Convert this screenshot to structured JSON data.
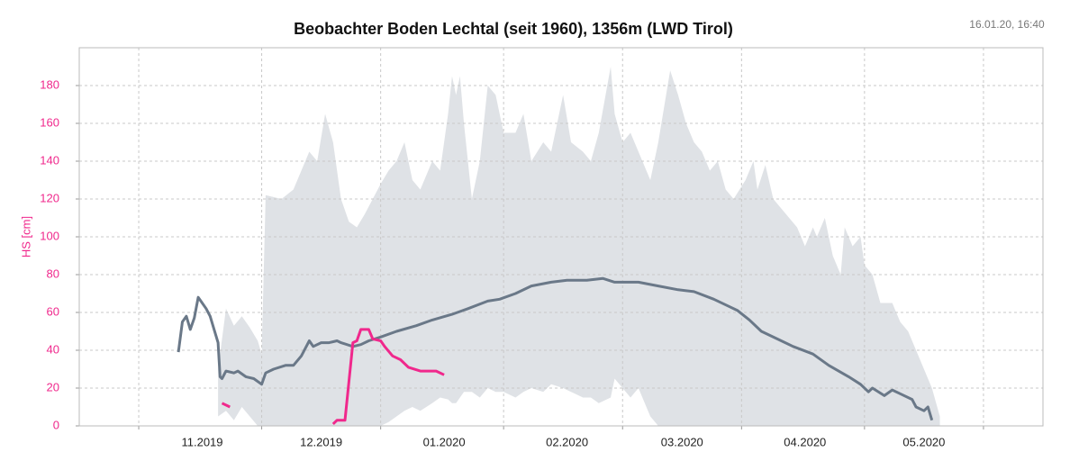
{
  "chart_data": {
    "type": "line",
    "title": "Beobachter Boden Lechtal (seit 1960), 1356m (LWD Tirol)",
    "timestamp": "16.01.20, 16:40",
    "ylabel": "HS [cm]",
    "ylim": [
      0,
      200
    ],
    "yticks": [
      0,
      20,
      40,
      60,
      80,
      100,
      120,
      140,
      160,
      180
    ],
    "xlim": [
      -31,
      212
    ],
    "xticks": [
      {
        "value": 0,
        "label": "11.2019"
      },
      {
        "value": 30,
        "label": "12.2019"
      },
      {
        "value": 61,
        "label": "01.2020"
      },
      {
        "value": 92,
        "label": "02.2020"
      },
      {
        "value": 121,
        "label": "03.2020"
      },
      {
        "value": 152,
        "label": "04.2020"
      },
      {
        "value": 182,
        "label": "05.2020"
      }
    ],
    "xgrid": [
      -16,
      15,
      45,
      76,
      106,
      136,
      167,
      197
    ],
    "grid": true,
    "band": {
      "color": "#dfe2e6",
      "x": [
        4,
        6,
        8,
        10,
        12,
        14,
        15,
        16,
        20,
        23,
        25,
        27,
        29,
        31,
        33,
        35,
        37,
        39,
        41,
        43,
        45,
        47,
        49,
        51,
        53,
        55,
        58,
        60,
        62,
        63,
        64,
        65,
        66,
        68,
        70,
        72,
        74,
        76,
        79,
        81,
        83,
        86,
        88,
        91,
        93,
        96,
        98,
        100,
        103,
        104,
        106,
        108,
        110,
        113,
        115,
        118,
        120,
        122,
        124,
        126,
        128,
        130,
        132,
        134,
        137,
        139,
        140,
        142,
        144,
        146,
        148,
        150,
        152,
        154,
        155,
        157,
        159,
        161,
        162,
        164,
        166,
        167,
        169,
        171,
        174,
        176,
        178,
        180,
        182,
        184,
        186
      ],
      "upper": [
        30,
        62,
        53,
        58,
        52,
        45,
        38,
        122,
        120,
        125,
        135,
        145,
        140,
        165,
        150,
        120,
        108,
        105,
        112,
        120,
        128,
        135,
        140,
        150,
        130,
        125,
        140,
        135,
        165,
        185,
        175,
        185,
        160,
        120,
        140,
        180,
        175,
        155,
        155,
        165,
        140,
        150,
        145,
        175,
        150,
        145,
        140,
        155,
        190,
        165,
        150,
        155,
        145,
        130,
        150,
        188,
        175,
        160,
        150,
        145,
        135,
        140,
        125,
        120,
        130,
        140,
        125,
        138,
        120,
        115,
        110,
        105,
        95,
        105,
        100,
        110,
        90,
        80,
        105,
        95,
        100,
        85,
        80,
        65,
        65,
        55,
        50,
        40,
        30,
        20,
        5
      ],
      "lower": [
        5,
        8,
        3,
        10,
        5,
        0,
        0,
        0,
        0,
        0,
        0,
        0,
        0,
        0,
        0,
        0,
        0,
        0,
        0,
        0,
        0,
        2,
        5,
        8,
        10,
        8,
        12,
        15,
        14,
        12,
        12,
        15,
        18,
        18,
        15,
        20,
        18,
        18,
        15,
        18,
        20,
        18,
        22,
        20,
        18,
        15,
        15,
        12,
        15,
        25,
        20,
        15,
        20,
        5,
        0,
        0,
        0,
        0,
        0,
        0,
        0,
        0,
        0,
        0,
        0,
        0,
        0,
        0,
        0,
        0,
        0,
        0,
        0,
        0,
        0,
        0,
        0,
        0,
        0,
        0,
        0,
        0,
        0,
        0,
        0,
        0,
        0,
        0,
        0,
        0,
        0
      ]
    },
    "series": [
      {
        "color": "#6a7888",
        "x": [
          -6,
          -5,
          -4,
          -3,
          -2,
          -1,
          0,
          1,
          2,
          3,
          4,
          4.5,
          5,
          6,
          8,
          9,
          11,
          13,
          15,
          16,
          18,
          21,
          23,
          25,
          27,
          28,
          30,
          32,
          34,
          35,
          38,
          40,
          42,
          45,
          49,
          54,
          58,
          63,
          67,
          72,
          75,
          79,
          83,
          88,
          92,
          97,
          101,
          104,
          106,
          110,
          115,
          120,
          124,
          129,
          133,
          135,
          138,
          141,
          145,
          149,
          154,
          158,
          163,
          166,
          168,
          169,
          172,
          174,
          176,
          179,
          180,
          182,
          183,
          184
        ],
        "values": [
          39,
          55,
          58,
          51,
          57,
          68,
          65,
          62,
          58,
          51,
          44,
          26,
          25,
          29,
          28,
          29,
          26,
          25,
          22,
          28,
          30,
          32,
          32,
          37,
          45,
          42,
          44,
          44,
          45,
          44,
          42,
          43,
          45,
          47,
          50,
          53,
          56,
          59,
          62,
          66,
          67,
          70,
          74,
          76,
          77,
          77,
          78,
          76,
          76,
          76,
          74,
          72,
          71,
          67,
          63,
          61,
          56,
          50,
          46,
          42,
          38,
          32,
          26,
          22,
          18,
          20,
          16,
          19,
          17,
          14,
          10,
          8,
          10,
          3
        ]
      },
      {
        "color": "#f0288c",
        "x": [
          5,
          7,
          20,
          33,
          34,
          36,
          38,
          39,
          40,
          42,
          43,
          45,
          46,
          48,
          50,
          52,
          55,
          57,
          59,
          61
        ],
        "values": [
          12,
          10,
          null,
          1,
          3,
          3,
          44,
          45,
          51,
          51,
          46,
          45,
          42,
          37,
          35,
          31,
          29,
          29,
          29,
          27
        ]
      }
    ]
  }
}
